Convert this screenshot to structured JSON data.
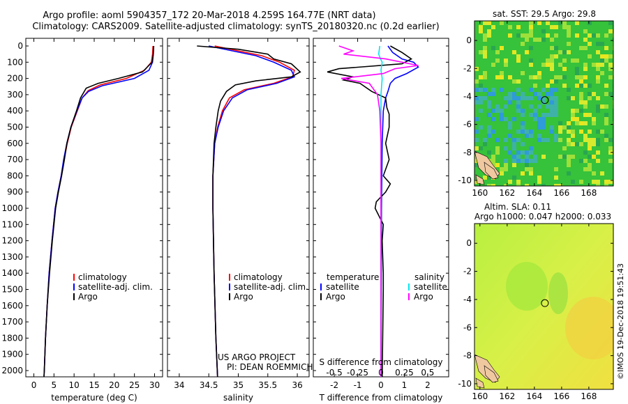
{
  "title_line1": "Argo profile: aoml 5904357_172 20-Mar-2018 4.259S 164.77E (NRT data)",
  "title_line2": "Climatology: CARS2009. Satellite-adjusted climatology: synTS_20180320.nc (0.2d earlier)",
  "timestamp": "©IMOS 19-Dec-2018 19:51:43",
  "credit_line1": "US ARGO PROJECT",
  "credit_line2": "PI: DEAN ROEMMICH",
  "colors": {
    "argo": "#000000",
    "climatology": "#ff0000",
    "satellite": "#0000ff",
    "sat_salinity": "#00e5ee",
    "argo_salinity": "#ff00ff"
  },
  "chart_data": [
    {
      "type": "line",
      "name": "temperature",
      "xlabel": "temperature (deg C)",
      "ylabel": "",
      "xlim": [
        -2,
        32
      ],
      "ylim": [
        2100,
        0
      ],
      "xticks": [
        0,
        5,
        10,
        15,
        20,
        25,
        30
      ],
      "yticks": [
        0,
        100,
        200,
        300,
        400,
        500,
        600,
        700,
        800,
        900,
        1000,
        1100,
        1200,
        1300,
        1400,
        1500,
        1600,
        1700,
        1800,
        1900,
        2000
      ],
      "legend": [
        "climatology",
        "satellite-adj. clim.",
        "Argo"
      ],
      "series": [
        {
          "name": "climatology",
          "color": "#ff0000",
          "points": [
            [
              29.6,
              0
            ],
            [
              29.5,
              50
            ],
            [
              29.2,
              100
            ],
            [
              27.5,
              150
            ],
            [
              23,
              200
            ],
            [
              16.5,
              240
            ],
            [
              13.5,
              275
            ],
            [
              12,
              320
            ],
            [
              10.8,
              400
            ],
            [
              9.3,
              500
            ],
            [
              8.3,
              600
            ],
            [
              7.5,
              700
            ],
            [
              6.8,
              800
            ],
            [
              6,
              900
            ],
            [
              5.3,
              1000
            ],
            [
              4.5,
              1200
            ],
            [
              3.8,
              1400
            ],
            [
              3.3,
              1600
            ],
            [
              2.9,
              1800
            ],
            [
              2.6,
              2000
            ],
            [
              2.5,
              2050
            ]
          ]
        },
        {
          "name": "satellite-adj. clim.",
          "color": "#0000ff",
          "points": [
            [
              29.8,
              0
            ],
            [
              29.7,
              50
            ],
            [
              29.5,
              100
            ],
            [
              28.6,
              150
            ],
            [
              25,
              200
            ],
            [
              17,
              245
            ],
            [
              13.6,
              280
            ],
            [
              12,
              320
            ],
            [
              10.7,
              400
            ],
            [
              9.2,
              500
            ],
            [
              8.2,
              600
            ],
            [
              7.4,
              700
            ],
            [
              6.8,
              800
            ],
            [
              6,
              900
            ],
            [
              5.3,
              1000
            ],
            [
              4.5,
              1200
            ],
            [
              3.8,
              1400
            ],
            [
              3.3,
              1600
            ],
            [
              2.9,
              1800
            ],
            [
              2.6,
              2000
            ],
            [
              2.5,
              2050
            ]
          ]
        },
        {
          "name": "Argo",
          "color": "#000000",
          "points": [
            [
              29.8,
              0
            ],
            [
              29.7,
              50
            ],
            [
              29.4,
              100
            ],
            [
              27,
              160
            ],
            [
              21,
              200
            ],
            [
              16,
              230
            ],
            [
              13,
              260
            ],
            [
              11.6,
              320
            ],
            [
              10.6,
              400
            ],
            [
              9.2,
              500
            ],
            [
              8.2,
              600
            ],
            [
              7.6,
              700
            ],
            [
              6.9,
              800
            ],
            [
              6.1,
              900
            ],
            [
              5.4,
              1000
            ],
            [
              4.6,
              1200
            ],
            [
              3.9,
              1400
            ],
            [
              3.3,
              1600
            ],
            [
              2.9,
              1800
            ],
            [
              2.6,
              2000
            ],
            [
              2.5,
              2050
            ]
          ]
        }
      ]
    },
    {
      "type": "line",
      "name": "salinity",
      "xlabel": "salinity",
      "xlim": [
        33.8,
        36.2
      ],
      "ylim": [
        2100,
        0
      ],
      "xticks": [
        34,
        34.5,
        35,
        35.5,
        36
      ],
      "xticklabels": [
        "34",
        "34.5",
        "35",
        "35.5",
        "36"
      ],
      "legend": [
        "climatology",
        "satellite-adj. clim.",
        "Argo"
      ],
      "series": [
        {
          "name": "climatology",
          "color": "#ff0000",
          "points": [
            [
              34.6,
              0
            ],
            [
              35.0,
              30
            ],
            [
              35.4,
              60
            ],
            [
              35.7,
              100
            ],
            [
              35.95,
              150
            ],
            [
              35.92,
              190
            ],
            [
              35.6,
              230
            ],
            [
              35.1,
              270
            ],
            [
              34.85,
              320
            ],
            [
              34.73,
              400
            ],
            [
              34.65,
              500
            ],
            [
              34.6,
              600
            ],
            [
              34.57,
              800
            ],
            [
              34.57,
              1000
            ],
            [
              34.59,
              1400
            ],
            [
              34.62,
              1800
            ],
            [
              34.65,
              2050
            ]
          ]
        },
        {
          "name": "satellite-adj. clim.",
          "color": "#0000ff",
          "points": [
            [
              34.5,
              0
            ],
            [
              34.9,
              30
            ],
            [
              35.3,
              60
            ],
            [
              35.6,
              100
            ],
            [
              35.9,
              150
            ],
            [
              35.95,
              190
            ],
            [
              35.65,
              230
            ],
            [
              35.15,
              270
            ],
            [
              34.9,
              320
            ],
            [
              34.75,
              400
            ],
            [
              34.66,
              500
            ],
            [
              34.6,
              600
            ],
            [
              34.57,
              800
            ],
            [
              34.57,
              1000
            ],
            [
              34.59,
              1400
            ],
            [
              34.62,
              1800
            ],
            [
              34.65,
              2050
            ]
          ]
        },
        {
          "name": "Argo",
          "color": "#000000",
          "points": [
            [
              34.3,
              0
            ],
            [
              35.0,
              20
            ],
            [
              35.5,
              50
            ],
            [
              35.6,
              80
            ],
            [
              35.9,
              110
            ],
            [
              36.05,
              160
            ],
            [
              35.9,
              190
            ],
            [
              35.3,
              215
            ],
            [
              34.95,
              240
            ],
            [
              34.8,
              280
            ],
            [
              34.7,
              340
            ],
            [
              34.66,
              400
            ],
            [
              34.62,
              500
            ],
            [
              34.59,
              600
            ],
            [
              34.57,
              800
            ],
            [
              34.57,
              1000
            ],
            [
              34.59,
              1400
            ],
            [
              34.62,
              1800
            ],
            [
              34.65,
              2050
            ]
          ]
        }
      ]
    },
    {
      "type": "line",
      "name": "difference",
      "xlabel": "T difference from climatology",
      "xlabel_top": "S difference from climatology",
      "xlim": [
        -2.9,
        2.9
      ],
      "ylim": [
        2100,
        0
      ],
      "xticks": [
        -2,
        -1,
        0,
        1,
        2
      ],
      "xticks_s": [
        -0.5,
        -0.25,
        0,
        0.25,
        0.5
      ],
      "xticks_s_labels": [
        "-0.5",
        "-0.25",
        "0",
        "0.25",
        "0.5"
      ],
      "legend": {
        "temperature_title": "temperature",
        "salinity_title": "salinity",
        "t_items": [
          "satellite",
          "Argo"
        ],
        "s_items": [
          "satellite",
          "Argo"
        ]
      },
      "series": [
        {
          "name": "T satellite",
          "color": "#0000ff",
          "points": [
            [
              0.3,
              0
            ],
            [
              0.5,
              40
            ],
            [
              0.9,
              80
            ],
            [
              1.4,
              100
            ],
            [
              1.6,
              130
            ],
            [
              1.1,
              170
            ],
            [
              0.6,
              200
            ],
            [
              0.4,
              230
            ],
            [
              0.3,
              280
            ],
            [
              0.2,
              320
            ],
            [
              0.1,
              400
            ],
            [
              0.05,
              600
            ],
            [
              0.02,
              1000
            ],
            [
              0.0,
              2050
            ]
          ]
        },
        {
          "name": "T Argo",
          "color": "#000000",
          "points": [
            [
              0.4,
              0
            ],
            [
              0.9,
              40
            ],
            [
              1.3,
              80
            ],
            [
              0.9,
              110
            ],
            [
              -1.8,
              140
            ],
            [
              -2.3,
              160
            ],
            [
              -1.2,
              190
            ],
            [
              -1.6,
              210
            ],
            [
              -0.9,
              230
            ],
            [
              -0.4,
              280
            ],
            [
              0.2,
              320
            ],
            [
              0.25,
              380
            ],
            [
              0.35,
              420
            ],
            [
              0.35,
              500
            ],
            [
              0.2,
              600
            ],
            [
              0.35,
              700
            ],
            [
              0.1,
              800
            ],
            [
              0.4,
              850
            ],
            [
              0.2,
              900
            ],
            [
              -0.2,
              960
            ],
            [
              -0.25,
              1000
            ],
            [
              0.1,
              1100
            ],
            [
              0.05,
              1200
            ],
            [
              0.1,
              1400
            ],
            [
              0.1,
              1500
            ],
            [
              0.05,
              2050
            ]
          ]
        },
        {
          "name": "S satellite",
          "color": "#00e5ee",
          "points": [
            [
              -0.05,
              0
            ],
            [
              -0.1,
              50
            ],
            [
              -0.02,
              80
            ],
            [
              0.05,
              100
            ],
            [
              0.0,
              150
            ],
            [
              0.05,
              200
            ],
            [
              0.0,
              300
            ],
            [
              0.0,
              600
            ],
            [
              0.0,
              2050
            ]
          ]
        },
        {
          "name": "S Argo",
          "color": "#ff00ff",
          "points": [
            [
              -1.8,
              0
            ],
            [
              -1.2,
              30
            ],
            [
              -1.6,
              50
            ],
            [
              0.2,
              80
            ],
            [
              1.6,
              120
            ],
            [
              0.6,
              140
            ],
            [
              0.1,
              170
            ],
            [
              -1.7,
              200
            ],
            [
              -0.5,
              230
            ],
            [
              -0.15,
              300
            ],
            [
              -0.05,
              400
            ],
            [
              0.0,
              600
            ],
            [
              0.0,
              2050
            ]
          ]
        }
      ]
    },
    {
      "type": "heatmap",
      "name": "sst_map",
      "title": "sat. SST: 29.5 Argo: 29.8",
      "xticks": [
        160,
        162,
        164,
        166,
        168
      ],
      "yticks": [
        0,
        -2,
        -4,
        -6,
        -8,
        -10
      ],
      "xlim": [
        159.6,
        169.8
      ],
      "ylim": [
        -10.4,
        1.4
      ],
      "marker": [
        164.77,
        -4.259
      ]
    },
    {
      "type": "heatmap",
      "name": "sla_map",
      "title": "Altim. SLA: 0.11",
      "subtitle": "Argo h1000: 0.047 h2000: 0.033",
      "xticks": [
        160,
        162,
        164,
        166,
        168
      ],
      "yticks": [
        0,
        -2,
        -4,
        -6,
        -8,
        -10
      ],
      "xlim": [
        159.6,
        169.8
      ],
      "ylim": [
        -10.4,
        1.4
      ],
      "marker": [
        164.77,
        -4.259
      ]
    }
  ]
}
